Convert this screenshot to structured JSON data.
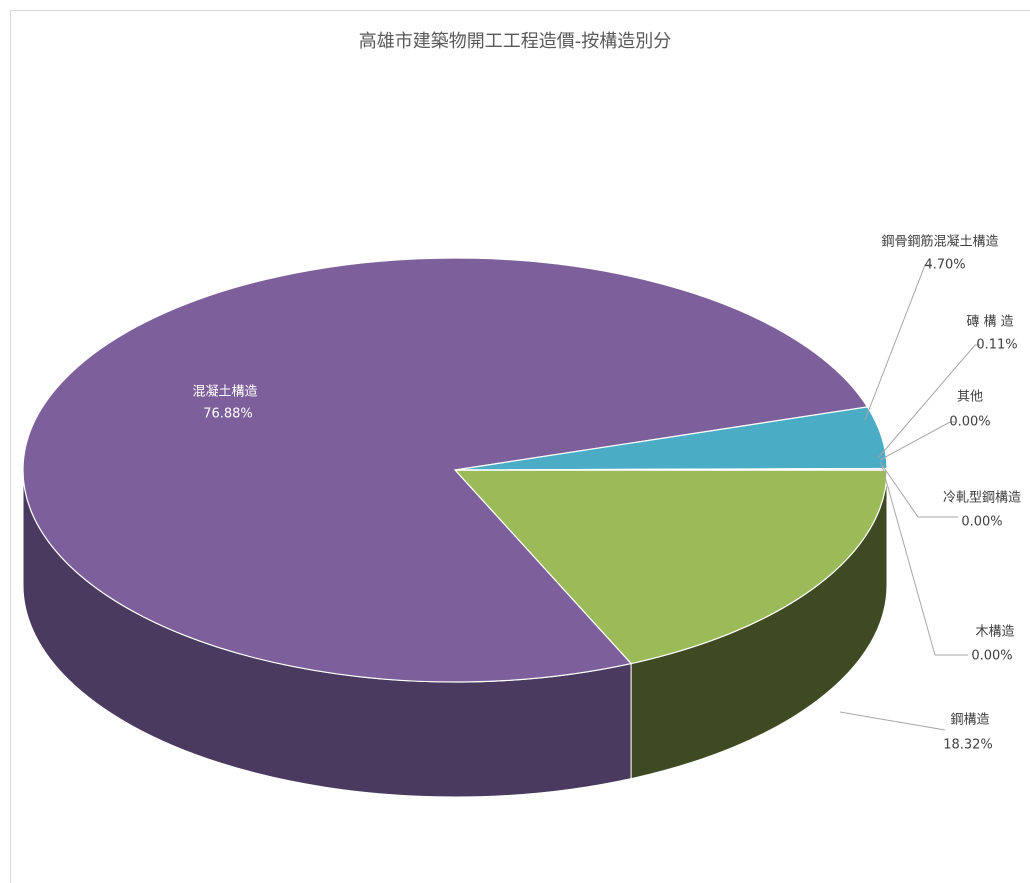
{
  "chart_data": {
    "type": "pie3d",
    "title": "高雄市建築物開工工程造價-按構造別分",
    "categories": [
      "冷軋型鋼構造",
      "木構造",
      "鋼構造",
      "混凝土構造",
      "鋼骨鋼筋混凝土構造",
      "磚 構 造",
      "其他"
    ],
    "values": [
      0.0,
      0.0,
      18.32,
      76.88,
      4.7,
      0.11,
      0.0
    ],
    "value_labels": [
      "0.00%",
      "0.00%",
      "18.32%",
      "76.88%",
      "4.70%",
      "0.11%",
      "0.00%"
    ],
    "colors": [
      "#c0504d",
      "#f79646",
      "#9bbb59",
      "#7d609b",
      "#4bacc6",
      "#8064a2",
      "#4f81bd"
    ],
    "side_colors": [
      "#7a2f2d",
      "#9a5b28",
      "#3e4a22",
      "#4b3a60",
      "#2d6e80",
      "#4e3c66",
      "#30507a"
    ]
  }
}
